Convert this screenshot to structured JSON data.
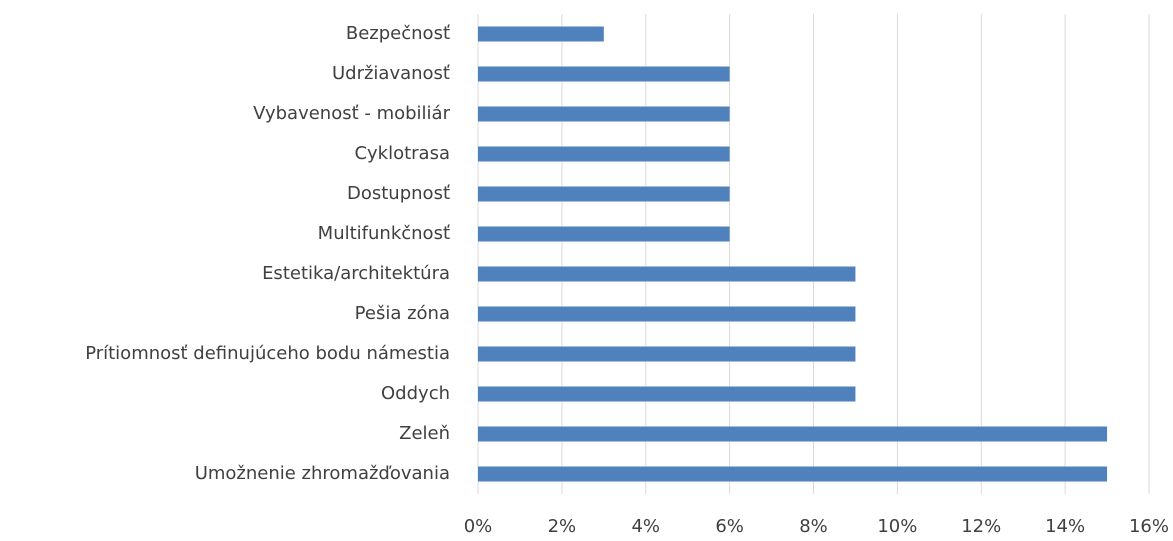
{
  "chart_data": {
    "type": "bar",
    "orientation": "horizontal",
    "categories": [
      "Bezpečnosť",
      "Udržiavanosť",
      "Vybavenosť - mobiliár",
      "Cyklotrasa",
      "Dostupnosť",
      "Multifunkčnosť",
      "Estetika/architektúra",
      "Pešia zóna",
      "Prítiomnosť definujúceho bodu námestia",
      "Oddych",
      "Zeleň",
      "Umožnenie zhromažďovania"
    ],
    "values": [
      3,
      6,
      6,
      6,
      6,
      6,
      9,
      9,
      9,
      9,
      15,
      15
    ],
    "color": "#4f81bd",
    "xlim": [
      0,
      16
    ],
    "xticks": [
      {
        "value": 0,
        "label": "0%"
      },
      {
        "value": 2,
        "label": "2%"
      },
      {
        "value": 4,
        "label": "4%"
      },
      {
        "value": 6,
        "label": "6%"
      },
      {
        "value": 8,
        "label": "8%"
      },
      {
        "value": 10,
        "label": "10%"
      },
      {
        "value": 12,
        "label": "12%"
      },
      {
        "value": 14,
        "label": "14%"
      },
      {
        "value": 16,
        "label": "16%"
      }
    ],
    "grid": true
  }
}
